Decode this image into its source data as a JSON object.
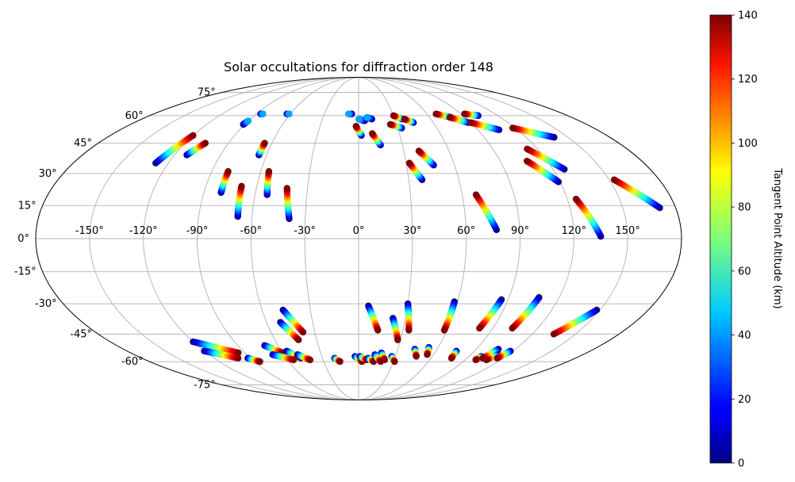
{
  "chart_data": {
    "type": "scatter",
    "projection": "mollweide",
    "title": "Solar occultations for diffraction order 148",
    "lon_ticks": [
      "-150°",
      "-120°",
      "-90°",
      "-60°",
      "-30°",
      "0°",
      "30°",
      "60°",
      "90°",
      "120°",
      "150°"
    ],
    "lat_ticks": [
      "75°",
      "60°",
      "45°",
      "30°",
      "15°",
      "0°",
      "-15°",
      "-30°",
      "-45°",
      "-60°",
      "-75°"
    ],
    "grid": true,
    "colorbar": {
      "label": "Tangent Point Altitude (km)",
      "colormap": "jet",
      "range": [
        0,
        140
      ],
      "ticks": [
        "0",
        "20",
        "40",
        "60",
        "80",
        "100",
        "120",
        "140"
      ]
    },
    "series": [
      {
        "lon": [
          -128,
          -120
        ],
        "lat": [
          35,
          49
        ],
        "alt": [
          0,
          140
        ]
      },
      {
        "lon": [
          -112,
          -106
        ],
        "lat": [
          39,
          45
        ],
        "alt": [
          0,
          140
        ]
      },
      {
        "lon": [
          -91,
          -90
        ],
        "lat": [
          55,
          57
        ],
        "alt": [
          0,
          40
        ]
      },
      {
        "lon": [
          -86,
          -84
        ],
        "lat": [
          61,
          61
        ],
        "alt": [
          0,
          40
        ]
      },
      {
        "lon": [
          -80,
          -80
        ],
        "lat": [
          21,
          31
        ],
        "alt": [
          0,
          140
        ]
      },
      {
        "lon": [
          -65,
          -65
        ],
        "lat": [
          39,
          45
        ],
        "alt": [
          0,
          140
        ]
      },
      {
        "lon": [
          -63,
          -61
        ],
        "lat": [
          61,
          61
        ],
        "alt": [
          0,
          40
        ]
      },
      {
        "lon": [
          -68,
          -69
        ],
        "lat": [
          10,
          24
        ],
        "alt": [
          0,
          140
        ]
      },
      {
        "lon": [
          -53,
          -55
        ],
        "lat": [
          20,
          31
        ],
        "alt": [
          0,
          140
        ]
      },
      {
        "lon": [
          -39,
          -42
        ],
        "lat": [
          9,
          23
        ],
        "alt": [
          0,
          140
        ]
      },
      {
        "lon": [
          -6,
          -9
        ],
        "lat": [
          61,
          61
        ],
        "alt": [
          0,
          40
        ]
      },
      {
        "lon": [
          5,
          0
        ],
        "lat": [
          57,
          58
        ],
        "alt": [
          0,
          40
        ]
      },
      {
        "lon": [
          11,
          7
        ],
        "lat": [
          58,
          59
        ],
        "alt": [
          0,
          40
        ]
      },
      {
        "lon": [
          2,
          -2
        ],
        "lat": [
          49,
          54
        ],
        "alt": [
          0,
          140
        ]
      },
      {
        "lon": [
          15,
          10
        ],
        "lat": [
          44,
          50
        ],
        "alt": [
          0,
          140
        ]
      },
      {
        "lon": [
          33,
          25
        ],
        "lat": [
          53,
          55
        ],
        "alt": [
          0,
          140
        ]
      },
      {
        "lon": [
          36,
          30
        ],
        "lat": [
          58,
          60
        ],
        "alt": [
          0,
          140
        ]
      },
      {
        "lon": [
          44,
          38
        ],
        "lat": [
          56,
          58
        ],
        "alt": [
          0,
          140
        ]
      },
      {
        "lon": [
          38,
          32
        ],
        "lat": [
          27,
          35
        ],
        "alt": [
          0,
          140
        ]
      },
      {
        "lon": [
          47,
          40
        ],
        "lat": [
          34,
          41
        ],
        "alt": [
          0,
          140
        ]
      },
      {
        "lon": [
          78,
          68
        ],
        "lat": [
          59,
          61
        ],
        "alt": [
          0,
          140
        ]
      },
      {
        "lon": [
          88,
          77
        ],
        "lat": [
          56,
          59
        ],
        "alt": [
          0,
          140
        ]
      },
      {
        "lon": [
          103,
          93
        ],
        "lat": [
          60,
          61
        ],
        "alt": [
          0,
          140
        ]
      },
      {
        "lon": [
          106,
          90
        ],
        "lat": [
          52,
          56
        ],
        "alt": [
          0,
          140
        ]
      },
      {
        "lon": [
          77,
          68
        ],
        "lat": [
          4,
          20
        ],
        "alt": [
          0,
          140
        ]
      },
      {
        "lon": [
          119,
          107
        ],
        "lat": [
          26,
          36
        ],
        "alt": [
          0,
          140
        ]
      },
      {
        "lon": [
          127,
          113
        ],
        "lat": [
          32,
          42
        ],
        "alt": [
          0,
          140
        ]
      },
      {
        "lon": [
          140,
          118
        ],
        "lat": [
          48,
          53
        ],
        "alt": [
          0,
          140
        ]
      },
      {
        "lon": [
          135,
          125
        ],
        "lat": [
          1,
          18
        ],
        "alt": [
          0,
          140
        ]
      },
      {
        "lon": [
          171,
          153
        ],
        "lat": [
          14,
          27
        ],
        "alt": [
          0,
          140
        ]
      },
      {
        "lon": [
          -47,
          -38
        ],
        "lat": [
          -33,
          -44
        ],
        "alt": [
          0,
          140
        ]
      },
      {
        "lon": [
          -51,
          -43
        ],
        "lat": [
          -39,
          -48
        ],
        "alt": [
          0,
          140
        ]
      },
      {
        "lon": [
          6,
          13
        ],
        "lat": [
          -31,
          -43
        ],
        "alt": [
          0,
          140
        ]
      },
      {
        "lon": [
          22,
          28
        ],
        "lat": [
          -37,
          -48
        ],
        "alt": [
          0,
          140
        ]
      },
      {
        "lon": [
          30,
          34
        ],
        "lat": [
          -30,
          -43
        ],
        "alt": [
          0,
          140
        ]
      },
      {
        "lon": [
          58,
          58
        ],
        "lat": [
          -29,
          -43
        ],
        "alt": [
          0,
          140
        ]
      },
      {
        "lon": [
          86,
          81
        ],
        "lat": [
          -28,
          -42
        ],
        "alt": [
          0,
          140
        ]
      },
      {
        "lon": [
          108,
          103
        ],
        "lat": [
          -27,
          -42
        ],
        "alt": [
          0,
          140
        ]
      },
      {
        "lon": [
          148,
          135
        ],
        "lat": [
          -33,
          -45
        ],
        "alt": [
          0,
          140
        ]
      },
      {
        "lon": [
          -120,
          -95
        ],
        "lat": [
          -49,
          -55
        ],
        "alt": [
          0,
          140
        ]
      },
      {
        "lon": [
          -120,
          -100
        ],
        "lat": [
          -54,
          -58
        ],
        "alt": [
          0,
          140
        ]
      },
      {
        "lon": [
          -70,
          -60
        ],
        "lat": [
          -51,
          -55
        ],
        "alt": [
          0,
          140
        ]
      },
      {
        "lon": [
          -56,
          -48
        ],
        "lat": [
          -54,
          -58
        ],
        "alt": [
          0,
          140
        ]
      },
      {
        "lon": [
          -69,
          -55
        ],
        "lat": [
          -56,
          -59
        ],
        "alt": [
          0,
          140
        ]
      },
      {
        "lon": [
          -49,
          -41
        ],
        "lat": [
          -56,
          -59
        ],
        "alt": [
          0,
          140
        ]
      },
      {
        "lon": [
          -92,
          -85
        ],
        "lat": [
          -58,
          -60
        ],
        "alt": [
          0,
          140
        ]
      },
      {
        "lon": [
          -20,
          -16
        ],
        "lat": [
          -58,
          -60
        ],
        "alt": [
          0,
          140
        ]
      },
      {
        "lon": [
          -3,
          3
        ],
        "lat": [
          -57,
          -60
        ],
        "alt": [
          0,
          140
        ]
      },
      {
        "lon": [
          1,
          7
        ],
        "lat": [
          -57,
          -59
        ],
        "alt": [
          0,
          140
        ]
      },
      {
        "lon": [
          8,
          13
        ],
        "lat": [
          -58,
          -60
        ],
        "alt": [
          0,
          140
        ]
      },
      {
        "lon": [
          18,
          22
        ],
        "lat": [
          -55,
          -59
        ],
        "alt": [
          0,
          140
        ]
      },
      {
        "lon": [
          13,
          19
        ],
        "lat": [
          -56,
          -60
        ],
        "alt": [
          0,
          140
        ]
      },
      {
        "lon": [
          27,
          31
        ],
        "lat": [
          -57,
          -60
        ],
        "alt": [
          0,
          140
        ]
      },
      {
        "lon": [
          43,
          47
        ],
        "lat": [
          -53,
          -57
        ],
        "alt": [
          0,
          140
        ]
      },
      {
        "lon": [
          53,
          55
        ],
        "lat": [
          -52,
          -56
        ],
        "alt": [
          0,
          140
        ]
      },
      {
        "lon": [
          76,
          77
        ],
        "lat": [
          -54,
          -58
        ],
        "alt": [
          0,
          140
        ]
      },
      {
        "lon": [
          100,
          99
        ],
        "lat": [
          -57,
          -59
        ],
        "alt": [
          0,
          140
        ]
      },
      {
        "lon": [
          107,
          103
        ],
        "lat": [
          -53,
          -58
        ],
        "alt": [
          0,
          140
        ]
      },
      {
        "lon": [
          112,
          108
        ],
        "lat": [
          -56,
          -59
        ],
        "alt": [
          0,
          140
        ]
      },
      {
        "lon": [
          118,
          115
        ],
        "lat": [
          -54,
          -58
        ],
        "alt": [
          0,
          140
        ]
      }
    ]
  }
}
